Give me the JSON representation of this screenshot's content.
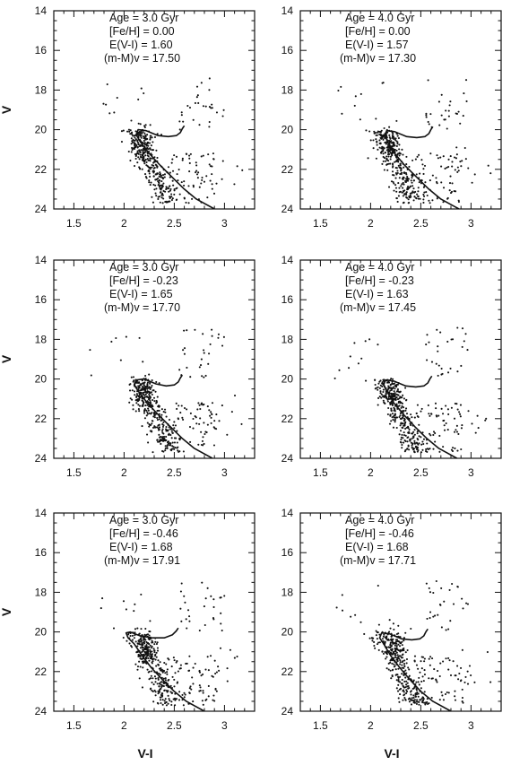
{
  "chart_data": [
    {
      "type": "scatter",
      "title": "",
      "xlabel": "",
      "ylabel": "V",
      "xlim": [
        1.3,
        3.3
      ],
      "ylim": [
        24,
        14
      ],
      "xticks": [
        "1.5",
        "2",
        "2.5",
        "3"
      ],
      "yticks": [
        "14",
        "16",
        "18",
        "20",
        "22",
        "24"
      ],
      "annotations": [
        "Age = 3.0 Gyr",
        "[Fe/H] = 0.00",
        "E(V-I) = 1.60",
        "(m-M)v = 17.50"
      ],
      "isochrone": {
        "x": [
          2.9,
          2.72,
          2.6,
          2.48,
          2.36,
          2.25,
          2.16,
          2.12,
          2.14,
          2.22,
          2.34,
          2.44,
          2.52,
          2.56,
          2.58,
          2.6
        ],
        "y": [
          24.0,
          23.5,
          23.0,
          22.4,
          21.8,
          21.2,
          20.6,
          20.25,
          20.0,
          20.05,
          20.3,
          20.35,
          20.3,
          20.15,
          19.95,
          19.8
        ]
      },
      "points": {
        "shift": 0.0,
        "seed": 11
      }
    },
    {
      "type": "scatter",
      "title": "",
      "xlabel": "",
      "ylabel": "",
      "xlim": [
        1.3,
        3.3
      ],
      "ylim": [
        24,
        14
      ],
      "xticks": [
        "1.5",
        "2",
        "2.5",
        "3"
      ],
      "yticks": [
        "14",
        "16",
        "18",
        "20",
        "22",
        "24"
      ],
      "annotations": [
        "Age = 4.0 Gyr",
        "[Fe/H] = 0.00",
        "E(V-I) = 1.57",
        "(m-M)v = 17.30"
      ],
      "isochrone": {
        "x": [
          2.88,
          2.7,
          2.58,
          2.46,
          2.34,
          2.24,
          2.17,
          2.14,
          2.16,
          2.24,
          2.36,
          2.46,
          2.54,
          2.58,
          2.6,
          2.62
        ],
        "y": [
          24.0,
          23.5,
          23.0,
          22.4,
          21.8,
          21.2,
          20.6,
          20.3,
          20.05,
          20.1,
          20.35,
          20.4,
          20.35,
          20.2,
          20.0,
          19.85
        ]
      },
      "points": {
        "shift": 0.0,
        "seed": 23
      }
    },
    {
      "type": "scatter",
      "title": "",
      "xlabel": "",
      "ylabel": "V",
      "xlim": [
        1.3,
        3.3
      ],
      "ylim": [
        24,
        14
      ],
      "xticks": [
        "1.5",
        "2",
        "2.5",
        "3"
      ],
      "yticks": [
        "14",
        "16",
        "18",
        "20",
        "22",
        "24"
      ],
      "annotations": [
        "Age = 3.0 Gyr",
        "[Fe/H] = -0.23",
        "E(V-I) = 1.65",
        "(m-M)v = 17.70"
      ],
      "isochrone": {
        "x": [
          2.88,
          2.7,
          2.58,
          2.46,
          2.34,
          2.23,
          2.14,
          2.1,
          2.12,
          2.2,
          2.32,
          2.42,
          2.5,
          2.54,
          2.56,
          2.58
        ],
        "y": [
          24.0,
          23.5,
          23.0,
          22.4,
          21.8,
          21.2,
          20.6,
          20.3,
          20.05,
          20.0,
          20.25,
          20.35,
          20.3,
          20.15,
          19.95,
          19.8
        ]
      },
      "points": {
        "shift": 0.02,
        "seed": 37
      }
    },
    {
      "type": "scatter",
      "title": "",
      "xlabel": "",
      "ylabel": "",
      "xlim": [
        1.3,
        3.3
      ],
      "ylim": [
        24,
        14
      ],
      "xticks": [
        "1.5",
        "2",
        "2.5",
        "3"
      ],
      "yticks": [
        "14",
        "16",
        "18",
        "20",
        "22",
        "24"
      ],
      "annotations": [
        "Age = 4.0 Gyr",
        "[Fe/H] = -0.23",
        "E(V-I) = 1.63",
        "(m-M)v = 17.45"
      ],
      "isochrone": {
        "x": [
          2.86,
          2.68,
          2.56,
          2.44,
          2.33,
          2.23,
          2.16,
          2.13,
          2.15,
          2.23,
          2.35,
          2.45,
          2.53,
          2.57,
          2.59,
          2.61
        ],
        "y": [
          24.0,
          23.5,
          23.0,
          22.4,
          21.8,
          21.2,
          20.6,
          20.3,
          20.05,
          20.1,
          20.35,
          20.4,
          20.35,
          20.2,
          20.0,
          19.85
        ]
      },
      "points": {
        "shift": 0.02,
        "seed": 41
      }
    },
    {
      "type": "scatter",
      "title": "",
      "xlabel": "V-I",
      "ylabel": "V",
      "xlim": [
        1.3,
        3.3
      ],
      "ylim": [
        24,
        14
      ],
      "xticks": [
        "1.5",
        "2",
        "2.5",
        "3"
      ],
      "yticks": [
        "14",
        "16",
        "18",
        "20",
        "22",
        "24"
      ],
      "annotations": [
        "Age = 3.0 Gyr",
        "[Fe/H] = -0.46",
        "E(V-I) = 1.68",
        "(m-M)v = 17.91"
      ],
      "isochrone": {
        "x": [
          2.8,
          2.62,
          2.5,
          2.38,
          2.27,
          2.18,
          2.1,
          2.04,
          2.02,
          2.06,
          2.16,
          2.28,
          2.4,
          2.48,
          2.52,
          2.54
        ],
        "y": [
          24.0,
          23.5,
          23.0,
          22.4,
          21.8,
          21.2,
          20.6,
          20.3,
          20.05,
          20.0,
          20.2,
          20.3,
          20.3,
          20.15,
          19.95,
          19.8
        ]
      },
      "points": {
        "shift": 0.03,
        "seed": 53
      }
    },
    {
      "type": "scatter",
      "title": "",
      "xlabel": "V-I",
      "ylabel": "",
      "xlim": [
        1.3,
        3.3
      ],
      "ylim": [
        24,
        14
      ],
      "xticks": [
        "1.5",
        "2",
        "2.5",
        "3"
      ],
      "yticks": [
        "14",
        "16",
        "18",
        "20",
        "22",
        "24"
      ],
      "annotations": [
        "Age = 4.0 Gyr",
        "[Fe/H] = -0.46",
        "E(V-I) = 1.68",
        "(m-M)v = 17.71"
      ],
      "isochrone": {
        "x": [
          2.8,
          2.62,
          2.5,
          2.39,
          2.29,
          2.2,
          2.13,
          2.09,
          2.11,
          2.19,
          2.31,
          2.41,
          2.49,
          2.53,
          2.55,
          2.57
        ],
        "y": [
          24.0,
          23.5,
          23.0,
          22.4,
          21.8,
          21.2,
          20.6,
          20.3,
          20.05,
          20.1,
          20.35,
          20.4,
          20.35,
          20.2,
          20.0,
          19.85
        ]
      },
      "points": {
        "shift": 0.03,
        "seed": 67
      }
    }
  ]
}
